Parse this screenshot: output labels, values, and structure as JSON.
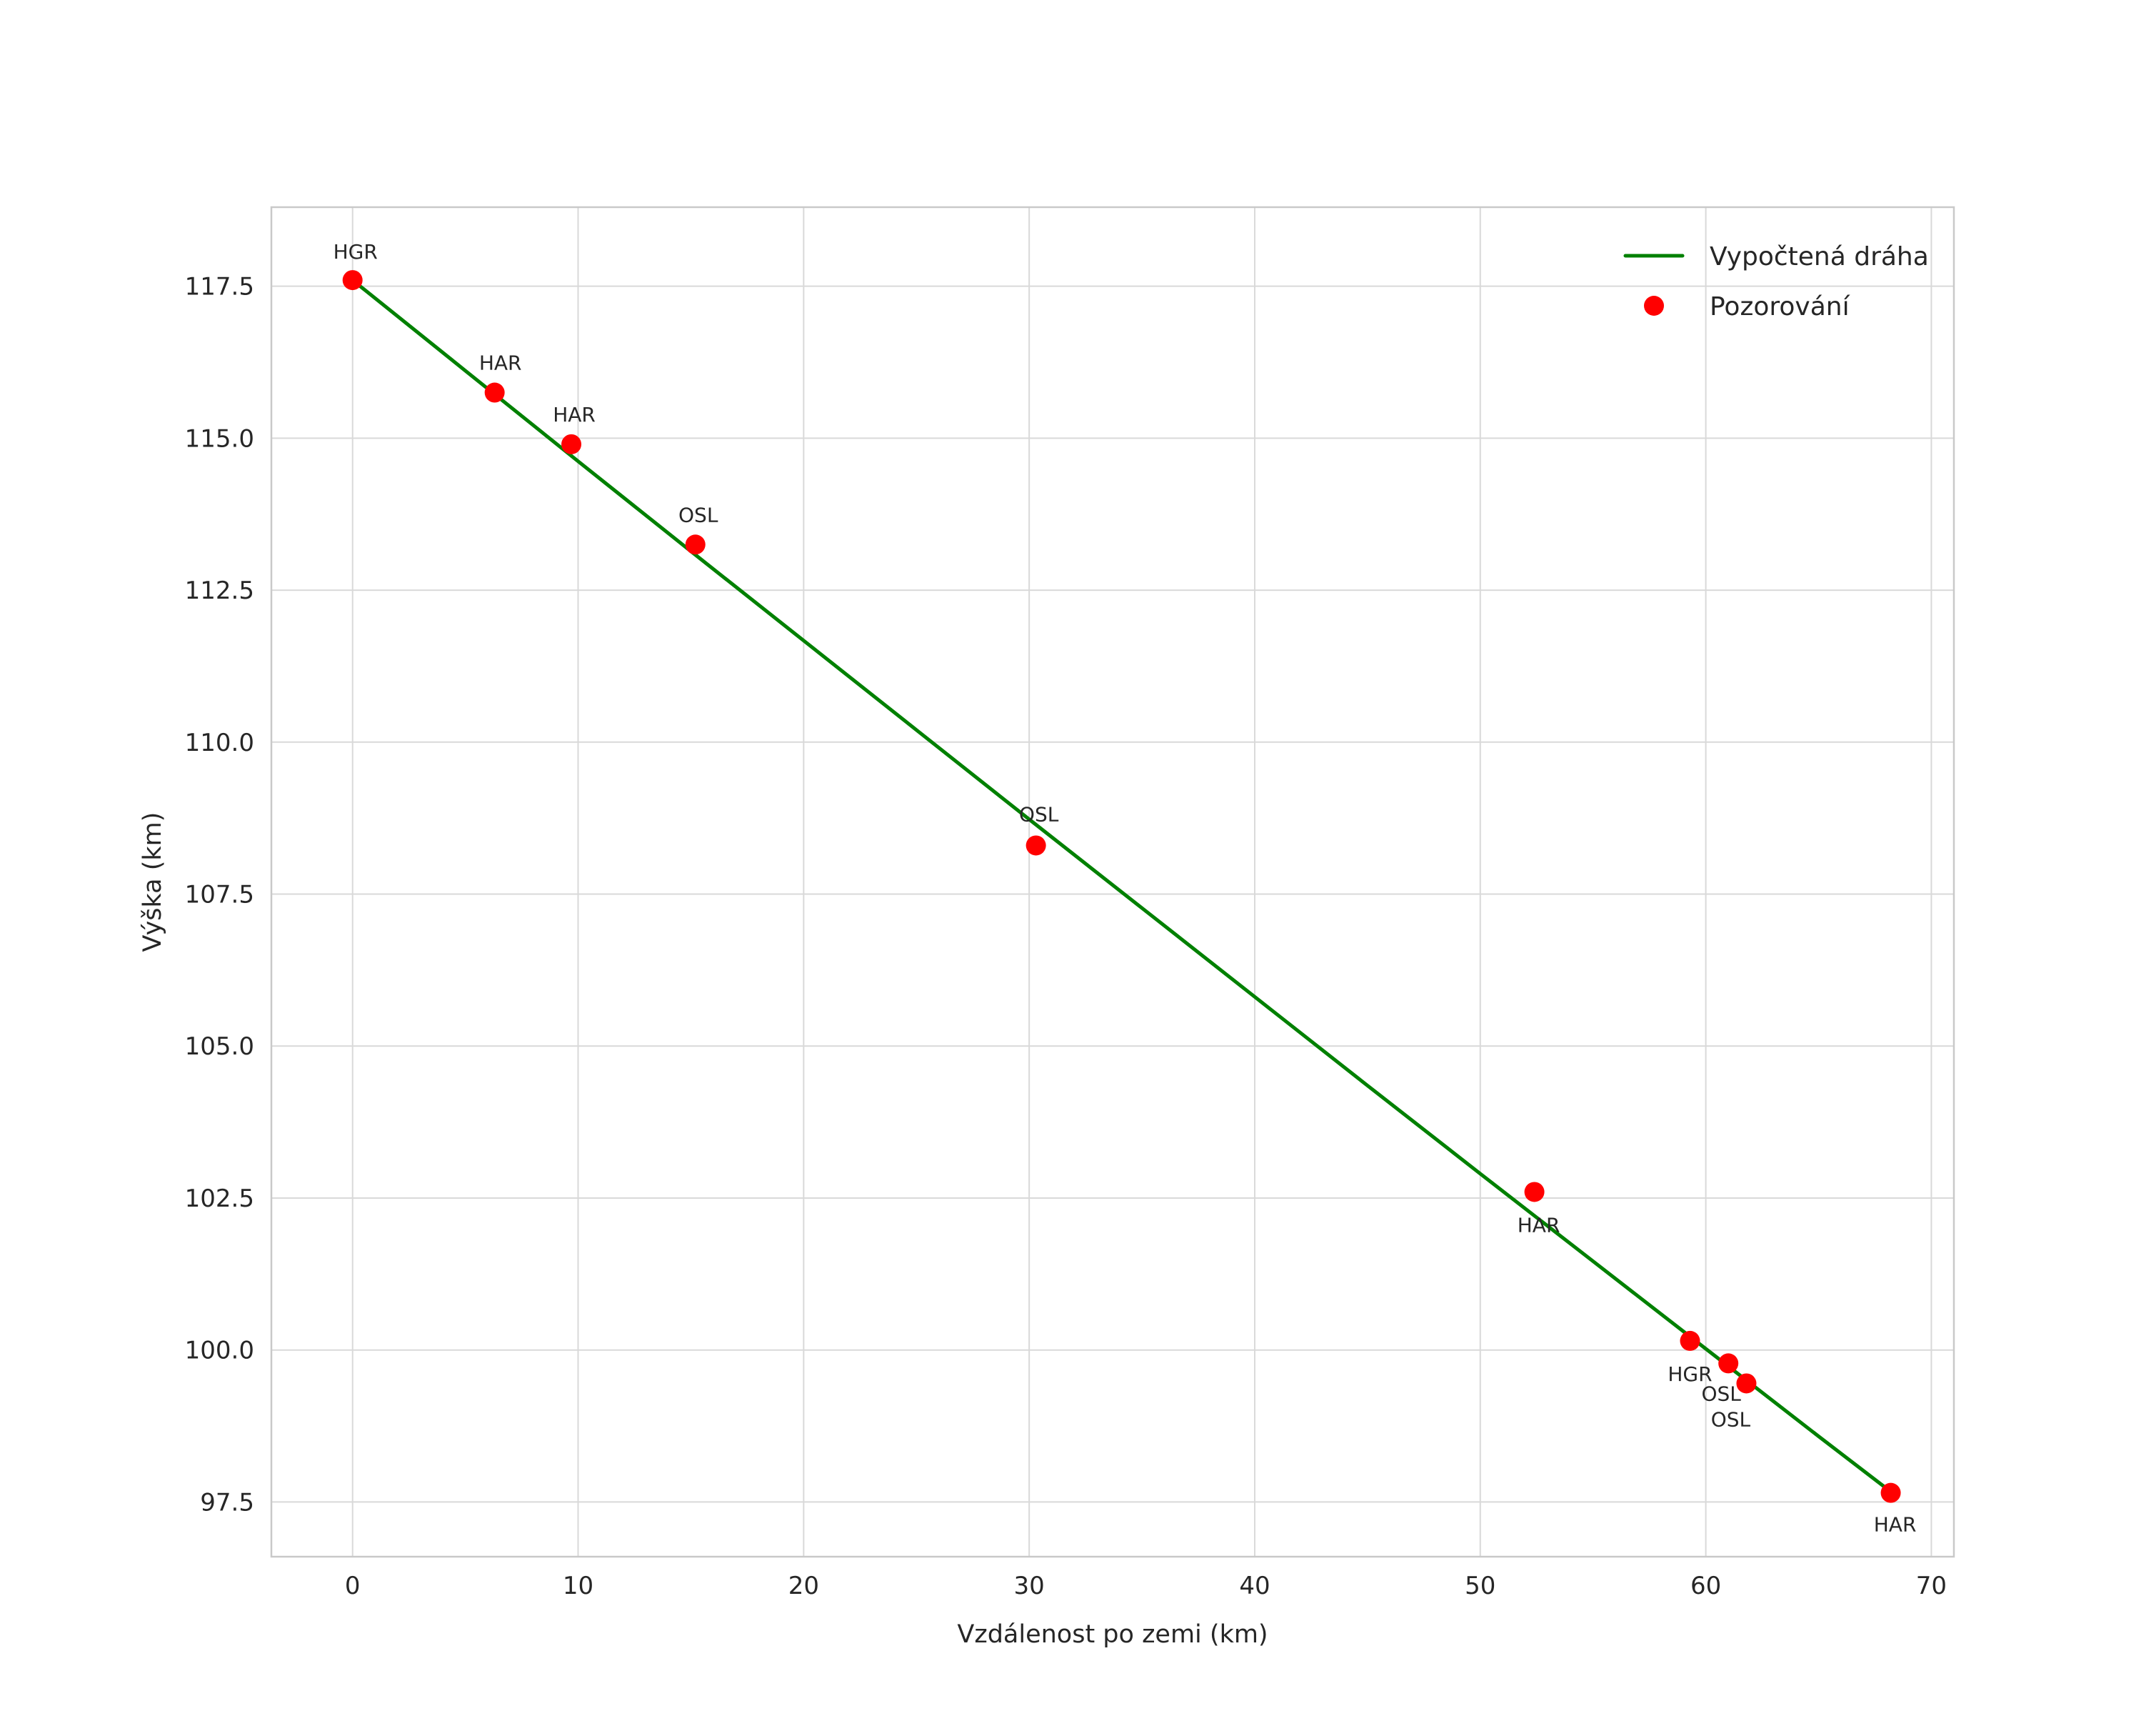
{
  "figure": {
    "background": "#ffffff"
  },
  "chart_data": {
    "type": "scatter",
    "title": "",
    "xlabel": "Vzdálenost po zemi (km)",
    "ylabel": "Výška (km)",
    "xlim": [
      -3.6,
      71.0
    ],
    "ylim": [
      96.6,
      118.8
    ],
    "grid": true,
    "style": {
      "grid_color": "#d9d9d9",
      "spine_color": "#c9c9c9",
      "text_color": "#262626",
      "background": "#ffffff",
      "line_color": "#008000",
      "marker_color": "#ff0000"
    },
    "x_ticks": [
      {
        "value": 0,
        "label": "0"
      },
      {
        "value": 10,
        "label": "10"
      },
      {
        "value": 20,
        "label": "20"
      },
      {
        "value": 30,
        "label": "30"
      },
      {
        "value": 40,
        "label": "40"
      },
      {
        "value": 50,
        "label": "50"
      },
      {
        "value": 60,
        "label": "60"
      },
      {
        "value": 70,
        "label": "70"
      }
    ],
    "y_ticks": [
      {
        "value": 97.5,
        "label": "97.5"
      },
      {
        "value": 100.0,
        "label": "100.0"
      },
      {
        "value": 102.5,
        "label": "102.5"
      },
      {
        "value": 105.0,
        "label": "105.0"
      },
      {
        "value": 107.5,
        "label": "107.5"
      },
      {
        "value": 110.0,
        "label": "110.0"
      },
      {
        "value": 112.5,
        "label": "112.5"
      },
      {
        "value": 115.0,
        "label": "115.0"
      },
      {
        "value": 117.5,
        "label": "117.5"
      }
    ],
    "legend": {
      "position": "upper right",
      "entries": [
        {
          "type": "line",
          "color": "#008000",
          "label": "Vypočtená dráha"
        },
        {
          "type": "marker",
          "color": "#ff0000",
          "label": "Pozorování"
        }
      ]
    },
    "series": [
      {
        "name": "Vypočtená dráha",
        "type": "line",
        "color": "#008000",
        "points": [
          [
            0,
            117.6
          ],
          [
            5,
            116.11
          ],
          [
            10,
            114.62
          ],
          [
            15,
            113.14
          ],
          [
            20,
            111.67
          ],
          [
            25,
            110.2
          ],
          [
            30,
            108.73
          ],
          [
            35,
            107.27
          ],
          [
            40,
            105.81
          ],
          [
            45,
            104.35
          ],
          [
            50,
            102.9
          ],
          [
            55,
            101.46
          ],
          [
            60,
            100.02
          ],
          [
            65,
            98.58
          ],
          [
            68.2,
            97.67
          ]
        ]
      },
      {
        "name": "Pozorování",
        "type": "scatter",
        "color": "#ff0000",
        "marker_radius": 14,
        "points": [
          {
            "station": "HGR",
            "x": 0.0,
            "y": 117.6,
            "label_dx": 4,
            "label_dy": -30
          },
          {
            "station": "HAR",
            "x": 6.3,
            "y": 115.75,
            "label_dx": 8,
            "label_dy": -32
          },
          {
            "station": "HAR",
            "x": 9.7,
            "y": 114.9,
            "label_dx": 4,
            "label_dy": -32
          },
          {
            "station": "OSL",
            "x": 15.2,
            "y": 113.25,
            "label_dx": 4,
            "label_dy": -32
          },
          {
            "station": "OSL",
            "x": 30.3,
            "y": 108.3,
            "label_dx": 4,
            "label_dy": -34
          },
          {
            "station": "HAR",
            "x": 52.4,
            "y": 102.6,
            "label_dx": 6,
            "label_dy": 56
          },
          {
            "station": "HGR",
            "x": 59.3,
            "y": 100.15,
            "label_dx": 0,
            "label_dy": 56
          },
          {
            "station": "OSL",
            "x": 61.0,
            "y": 99.78,
            "label_dx": -10,
            "label_dy": 52
          },
          {
            "station": "OSL",
            "x": 61.8,
            "y": 99.45,
            "label_dx": -22,
            "label_dy": 60
          },
          {
            "station": "HAR",
            "x": 68.2,
            "y": 97.65,
            "label_dx": 6,
            "label_dy": 54
          }
        ]
      }
    ]
  }
}
